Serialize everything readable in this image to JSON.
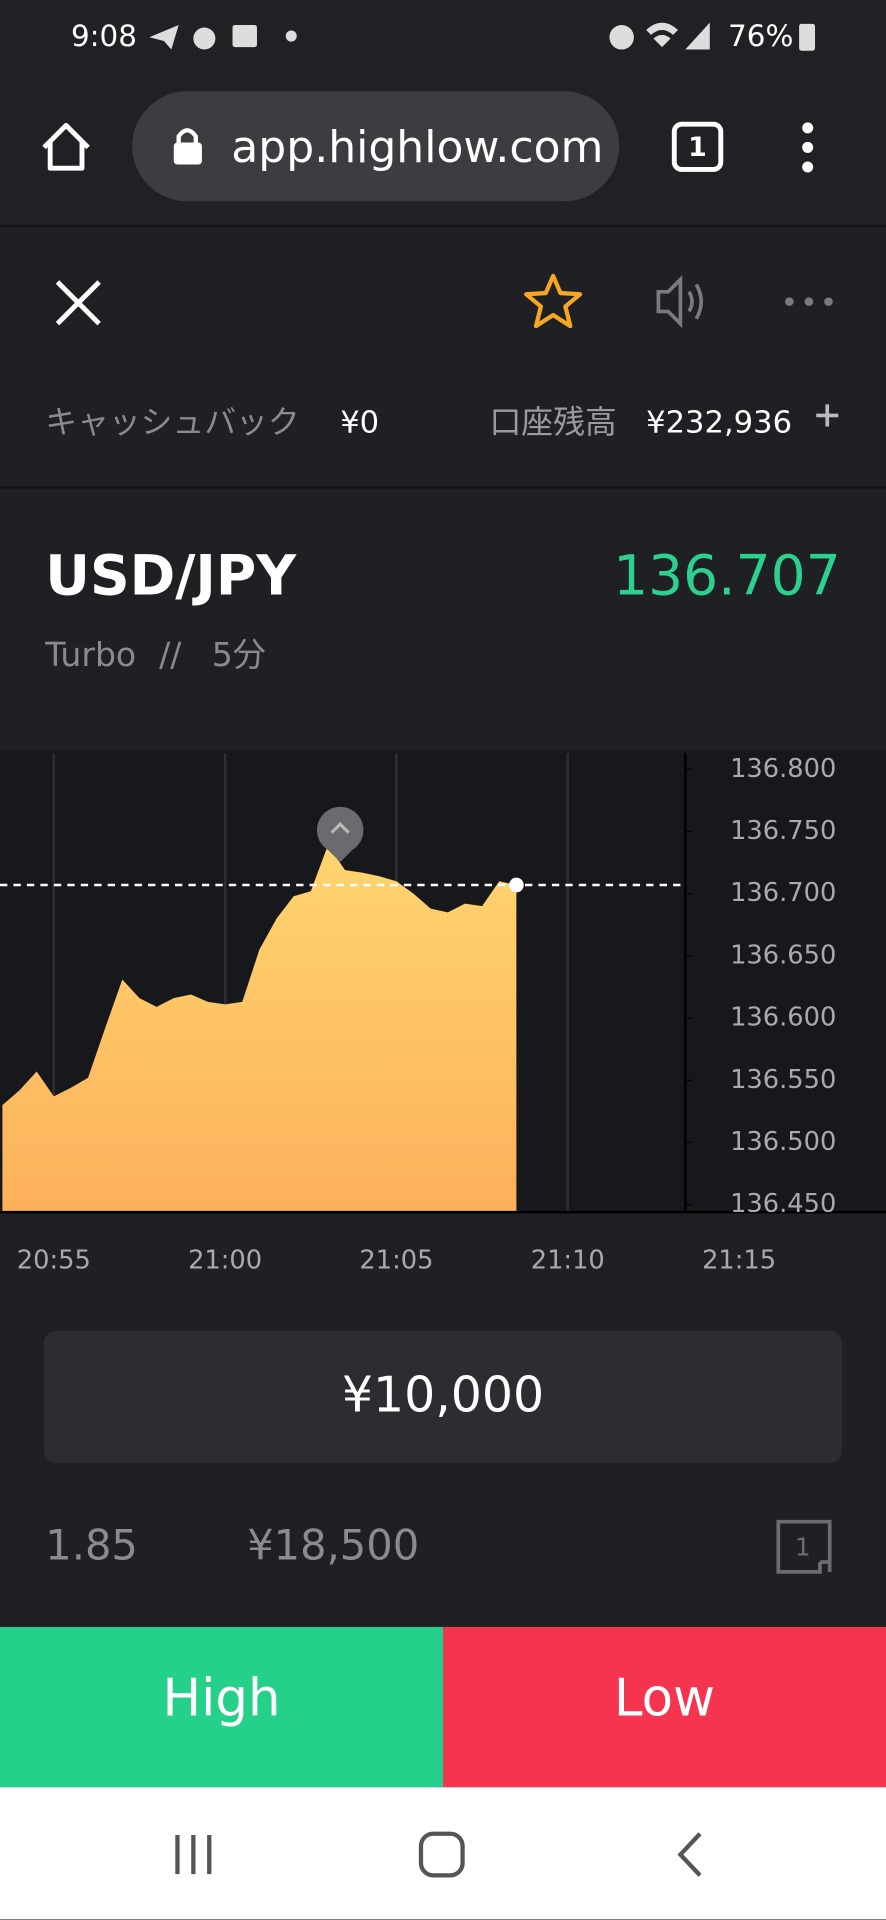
{
  "status_bar": {
    "time": "9:08",
    "battery": "76%"
  },
  "browser": {
    "url": "app.highlow.com",
    "tab_count": "1"
  },
  "account": {
    "cashback_label": "キャッシュバック",
    "cashback": "¥0",
    "balance_label": "口座残高",
    "balance": "¥232,936"
  },
  "asset": {
    "name": "USD/JPY",
    "price": "136.707",
    "product": "Turbo",
    "separator": "//",
    "duration": "5分"
  },
  "chart_data": {
    "type": "area",
    "color_top": "#ffd56f",
    "color_bottom": "#fdb05c",
    "x": [
      1253.5,
      1254,
      1254.5,
      1255,
      1255.5,
      1256,
      1256.5,
      1257,
      1257.5,
      1258,
      1258.5,
      1259,
      1259.5,
      1260,
      1260.5,
      1261,
      1261.5,
      1262,
      1262.5,
      1263,
      1263.5,
      1264,
      1264.5,
      1265,
      1265.5,
      1266,
      1266.5,
      1267,
      1267.5,
      1268,
      1268.5
    ],
    "values": [
      136.53,
      136.542,
      136.557,
      136.537,
      136.544,
      136.552,
      136.592,
      136.631,
      136.616,
      136.609,
      136.616,
      136.619,
      136.613,
      136.611,
      136.613,
      136.655,
      136.68,
      136.698,
      136.702,
      136.739,
      136.719,
      136.717,
      136.714,
      136.71,
      136.7,
      136.688,
      136.685,
      136.692,
      136.69,
      136.71,
      136.707
    ],
    "xlim": [
      1253.43,
      1273.43
    ],
    "xticks": [
      {
        "value": 1255,
        "label": "20:55"
      },
      {
        "value": 1260,
        "label": "21:00"
      },
      {
        "value": 1265,
        "label": "21:05"
      },
      {
        "value": 1270,
        "label": "21:10"
      },
      {
        "value": 1275,
        "label": "21:15"
      }
    ],
    "ylim": [
      136.444,
      136.813
    ],
    "yticks": [
      {
        "value": 136.8,
        "label": "136.800"
      },
      {
        "value": 136.75,
        "label": "136.750"
      },
      {
        "value": 136.7,
        "label": "136.700"
      },
      {
        "value": 136.65,
        "label": "136.650"
      },
      {
        "value": 136.6,
        "label": "136.600"
      },
      {
        "value": 136.55,
        "label": "136.550"
      },
      {
        "value": 136.5,
        "label": "136.500"
      },
      {
        "value": 136.45,
        "label": "136.450"
      }
    ],
    "grid": true
  },
  "order": {
    "amount": "¥10,000",
    "payout_rate": "1.85",
    "payout": "¥18,500",
    "ticket_count": "1"
  },
  "buttons": {
    "high": "High",
    "low": "Low"
  }
}
